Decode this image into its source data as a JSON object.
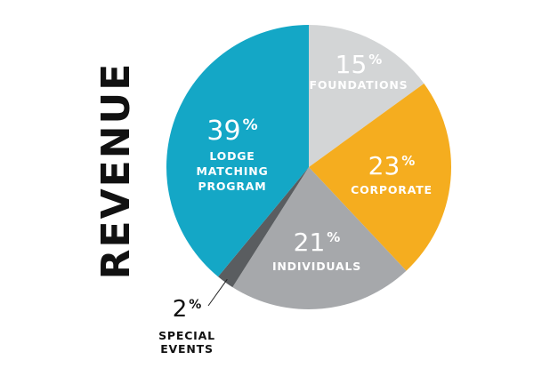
{
  "chart_data": {
    "type": "pie",
    "title": "REVENUE",
    "slices": [
      {
        "label": "FOUNDATIONS",
        "value": 15,
        "display": "15",
        "color": "#d3d5d6",
        "text_color": "#ffffff"
      },
      {
        "label": "CORPORATE",
        "value": 23,
        "display": "23",
        "color": "#f5ad1f",
        "text_color": "#ffffff"
      },
      {
        "label": "INDIVIDUALS",
        "value": 21,
        "display": "21",
        "color": "#a6a8ab",
        "text_color": "#ffffff"
      },
      {
        "label": "SPECIAL EVENTS",
        "value": 2,
        "display": "2",
        "color": "#5a5d60",
        "text_color": "#111111"
      },
      {
        "label": "LODGE MATCHING PROGRAM",
        "value": 39,
        "display": "39",
        "color": "#14a7c6",
        "text_color": "#ffffff"
      }
    ],
    "percent_sign": "%"
  }
}
